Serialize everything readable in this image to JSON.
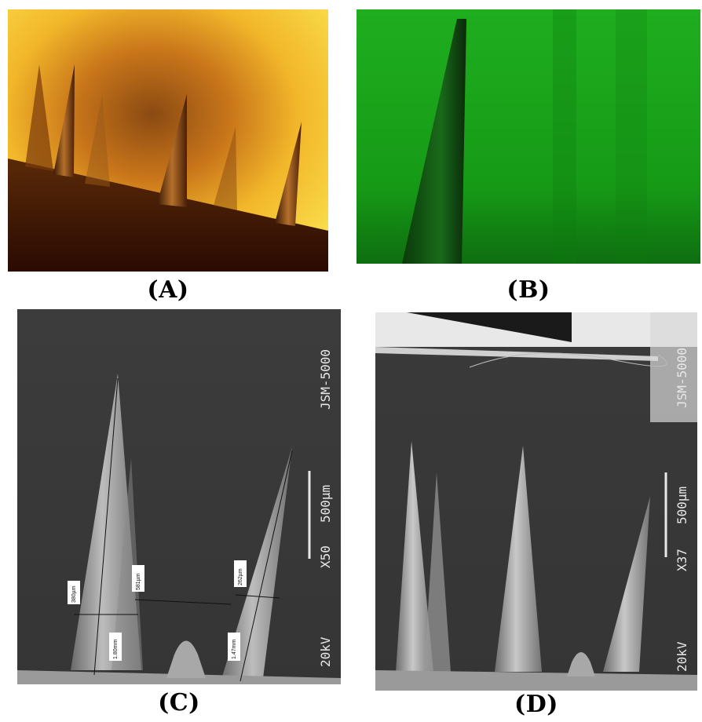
{
  "panels": [
    {
      "id": "A",
      "caption": "(A)"
    },
    {
      "id": "B",
      "caption": "(B)"
    },
    {
      "id": "C",
      "caption": "(C)",
      "sem": {
        "instrument": "JSM-5000",
        "magnification": "X50",
        "scale": "500µm",
        "voltage": "20kV"
      },
      "measurements": [
        "380µm",
        "581µm",
        "262µm",
        "1.80mm",
        "1.47mm"
      ]
    },
    {
      "id": "D",
      "caption": "(D)",
      "sem": {
        "instrument": "JSM-5000",
        "magnification": "X37",
        "scale": "500µm",
        "voltage": "20kV"
      }
    }
  ],
  "colors": {
    "panel_a_bg": "#f5c21a",
    "panel_b_bg": "#1fa51f",
    "sem_bg": "#3a3a3a"
  }
}
